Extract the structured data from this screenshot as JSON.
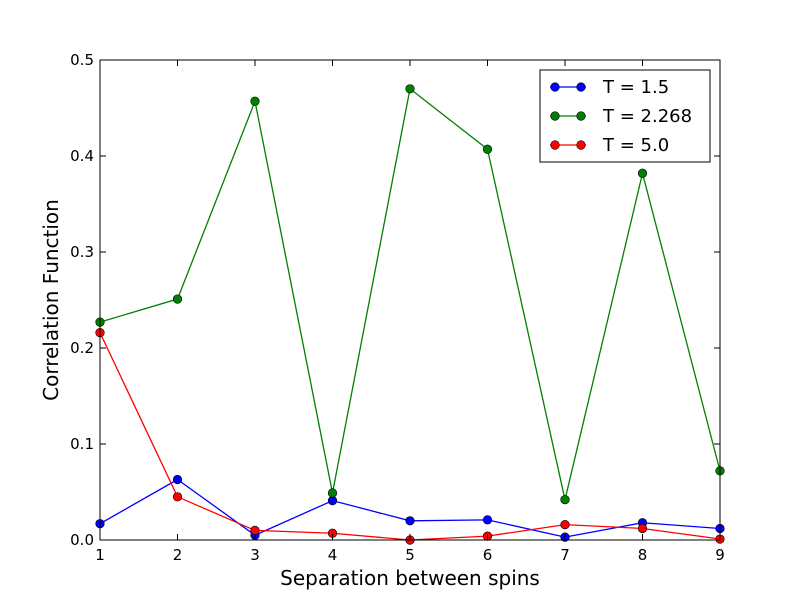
{
  "chart_data": {
    "type": "line",
    "title": "",
    "xlabel": "Separation between spins",
    "ylabel": "Correlation Function",
    "xlim": [
      1,
      9
    ],
    "ylim": [
      0.0,
      0.5
    ],
    "xticks": [
      "1",
      "2",
      "3",
      "4",
      "5",
      "6",
      "7",
      "8",
      "9"
    ],
    "yticks": [
      "0.0",
      "0.1",
      "0.2",
      "0.3",
      "0.4",
      "0.5"
    ],
    "grid": false,
    "legend_position": "top-right",
    "x": [
      1,
      2,
      3,
      4,
      5,
      6,
      7,
      8,
      9
    ],
    "series": [
      {
        "name": "T = 1.5",
        "color": "#0000ff",
        "values": [
          0.017,
          0.063,
          0.005,
          0.041,
          0.02,
          0.021,
          0.003,
          0.018,
          0.012
        ]
      },
      {
        "name": "T = 2.268",
        "color": "#008000",
        "values": [
          0.227,
          0.251,
          0.457,
          0.049,
          0.47,
          0.407,
          0.042,
          0.382,
          0.072
        ]
      },
      {
        "name": "T = 5.0",
        "color": "#ff0000",
        "values": [
          0.216,
          0.045,
          0.01,
          0.007,
          0.0,
          0.004,
          0.016,
          0.012,
          0.001
        ]
      }
    ]
  }
}
